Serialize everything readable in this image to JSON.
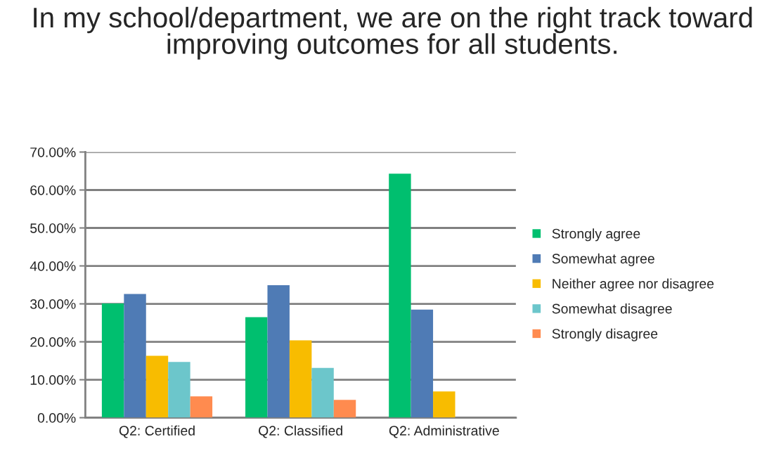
{
  "chart_data": {
    "type": "bar",
    "title": "In my school/department, we are on the right track toward improving outcomes for all students.",
    "categories": [
      "Q2: Certified",
      "Q2: Classified",
      "Q2: Administrative"
    ],
    "series": [
      {
        "name": "Strongly agree",
        "color": "#00bf6f",
        "values": [
          30.1,
          26.5,
          64.3
        ]
      },
      {
        "name": "Somewhat agree",
        "color": "#4f7bb5",
        "values": [
          32.6,
          34.9,
          28.5
        ]
      },
      {
        "name": "Neither agree nor disagree",
        "color": "#f8bc00",
        "values": [
          16.3,
          20.4,
          6.9
        ]
      },
      {
        "name": "Somewhat disagree",
        "color": "#6cc6cb",
        "values": [
          14.7,
          13.1,
          null
        ]
      },
      {
        "name": "Strongly disagree",
        "color": "#ff8b4f",
        "values": [
          5.6,
          4.7,
          null
        ]
      }
    ],
    "ylim": [
      0,
      70
    ],
    "yticks": [
      {
        "value": 0,
        "label": "0.00%"
      },
      {
        "value": 10,
        "label": "10.00%"
      },
      {
        "value": 20,
        "label": "20.00%"
      },
      {
        "value": 30,
        "label": "30.00%"
      },
      {
        "value": 40,
        "label": "40.00%"
      },
      {
        "value": 50,
        "label": "50.00%"
      },
      {
        "value": 60,
        "label": "60.00%"
      },
      {
        "value": 70,
        "label": "70.00%"
      }
    ],
    "grid": "y",
    "legend": "right"
  }
}
